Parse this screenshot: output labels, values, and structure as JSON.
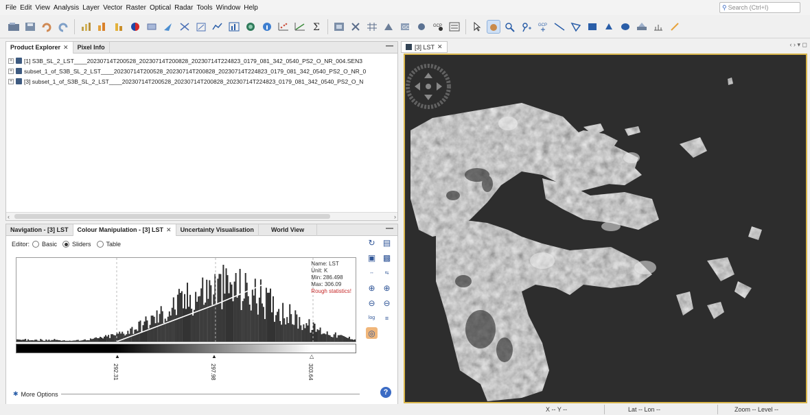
{
  "menubar": {
    "items": [
      "File",
      "Edit",
      "View",
      "Analysis",
      "Layer",
      "Vector",
      "Raster",
      "Optical",
      "Radar",
      "Tools",
      "Window",
      "Help"
    ],
    "search_placeholder": "Search (Ctrl+I)"
  },
  "toolbar": {
    "icons": [
      "open-product-icon",
      "save-product-icon",
      "undo-icon",
      "redo-icon",
      "bar-chart-icon",
      "bar-chart-orange-icon",
      "bar-chart-yellow-icon",
      "colour-manipulation-icon",
      "layer-icon",
      "navigation-icon",
      "vector-icon",
      "draw-icon",
      "spectrum-icon",
      "profile-plot-icon",
      "world-map-icon",
      "information-icon",
      "scatter-plot-icon",
      "density-plot-icon",
      "sigma-statistics-icon",
      "mask-icon",
      "pins-icon",
      "grid-icon",
      "gcp-icon",
      "band-maths-icon",
      "magic-wand-icon",
      "pixel-info-icon",
      "select-tool-icon",
      "pan-tool-icon",
      "zoom-tool-icon",
      "pin-placing-icon",
      "gcp-placing-icon",
      "line-drawing-icon",
      "polygon-drawing-icon",
      "rectangle-drawing-icon",
      "cloud-icon",
      "ellipse-drawing-icon",
      "range-finder-icon",
      "cursor-sync-icon",
      "toolbar-overflow-icon",
      "toolbar-overflow-icon-2"
    ]
  },
  "product_explorer": {
    "tabs": [
      "Product Explorer",
      "Pixel Info"
    ],
    "items": [
      "[1] S3B_SL_2_LST____20230714T200528_20230714T200828_20230714T224823_0179_081_342_0540_PS2_O_NR_004.SEN3",
      "subset_1_of_S3B_SL_2_LST____20230714T200528_20230714T200828_20230714T224823_0179_081_342_0540_PS2_O_NR_0",
      "[3] subset_1_of_S3B_SL_2_LST____20230714T200528_20230714T200828_20230714T224823_0179_081_342_0540_PS2_O_N"
    ]
  },
  "colour_panel": {
    "tabs": [
      "Navigation - [3] LST",
      "Colour Manipulation - [3] LST",
      "Uncertainty Visualisation",
      "World View"
    ],
    "editor_label": "Editor:",
    "editor_options": [
      "Basic",
      "Sliders",
      "Table"
    ],
    "selected_editor": "Sliders",
    "stats": {
      "name": "Name: LST",
      "unit": "Unit: K",
      "min": "Min: 286.498",
      "max": "Max: 306.09",
      "note": "Rough statistics!"
    },
    "sliders": [
      "292.31",
      "297.98",
      "303.64"
    ],
    "more_options": "More Options",
    "colors": {
      "stats_warning": "#c62828",
      "gradient_start": "#000000",
      "gradient_end": "#ffffff"
    }
  },
  "image_view": {
    "tab_label": "[3] LST",
    "border_color": "#d9b64b"
  },
  "statusbar": {
    "x": "X  -- Y  --",
    "lat": "Lat  -- Lon  --",
    "zoom": "Zoom -- Level --"
  }
}
